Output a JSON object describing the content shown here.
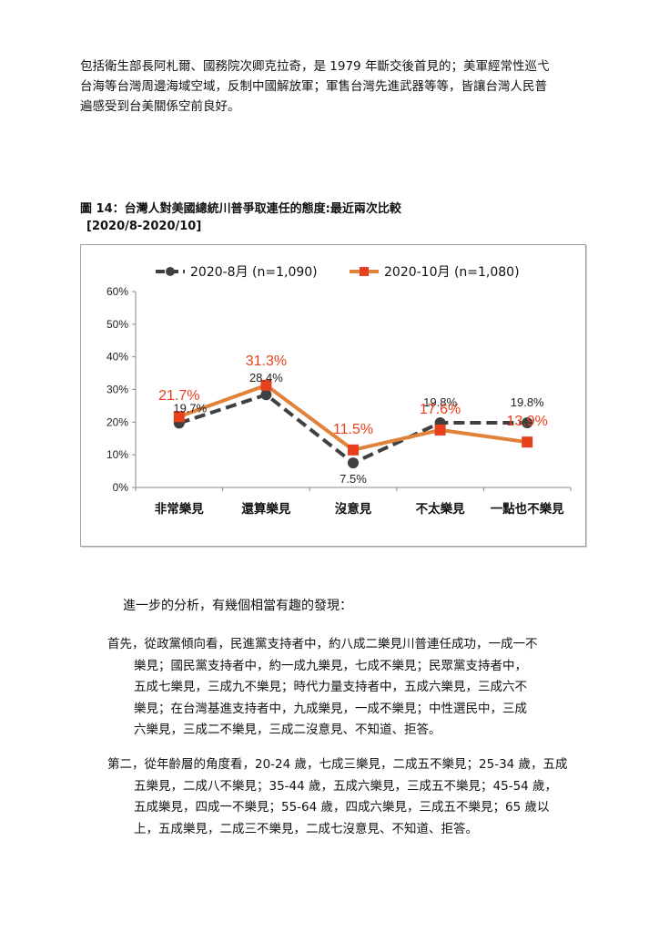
{
  "paragraph_top": {
    "lines": [
      "包括衛生部長阿札爾、國務院次卿克拉奇，是 1979 年斷交後首見的；美軍經常性巡弋",
      "台海等台灣周邊海域空域，反制中國解放軍；軍售台灣先進武器等等，皆讓台灣人民普",
      "遍感受到台美關係空前良好。"
    ]
  },
  "figure": {
    "title": "圖 14：台灣人對美國總統川普爭取連任的態度:最近兩次比較",
    "subtitle": "[2020/8-2020/10]"
  },
  "chart_data": {
    "type": "line",
    "categories": [
      "非常樂見",
      "還算樂見",
      "沒意見",
      "不太樂見",
      "一點也不樂見"
    ],
    "series": [
      {
        "name": "2020-8月 (n=1,090)",
        "values": [
          19.7,
          28.4,
          7.5,
          19.8,
          19.8
        ],
        "labels": [
          "19.7%",
          "28.4%",
          "7.5%",
          "19.8%",
          "19.8%"
        ],
        "color": "#404040",
        "style": "dashed"
      },
      {
        "name": "2020-10月 (n=1,080)",
        "values": [
          21.7,
          31.3,
          11.5,
          17.6,
          13.9
        ],
        "labels": [
          "21.7%",
          "31.3%",
          "11.5%",
          "17.6%",
          "13.9%"
        ],
        "color": "#e0823a",
        "marker_color": "#e8401c",
        "label_color": "#e8401c",
        "style": "solid"
      }
    ],
    "yticks": [
      "0%",
      "10%",
      "20%",
      "30%",
      "40%",
      "50%",
      "60%"
    ],
    "ylim": [
      0,
      60
    ],
    "legend": "top",
    "grid": false
  },
  "intro": "進一步的分析，有幾個相當有趣的發現：",
  "items": [
    {
      "lines": [
        "首先，從政黨傾向看，民進黨支持者中，約八成二樂見川普連任成功，一成一不",
        "樂見；國民黨支持者中，約一成九樂見，七成不樂見；民眾黨支持者中，",
        "五成七樂見，三成九不樂見；時代力量支持者中，五成六樂見，三成六不",
        "樂見；在台灣基進支持者中，九成樂見，一成不樂見；中性選民中，三成",
        "六樂見，三成二不樂見，三成二沒意見、不知道、拒答。"
      ]
    },
    {
      "lines": [
        "第二，從年齡層的角度看，20-24 歲，七成三樂見，二成五不樂見；25-34 歲，五成",
        "五樂見，二成八不樂見；35-44 歲，五成六樂見，三成五不樂見；45-54 歲，",
        "五成樂見，四成一不樂見；55-64 歲，四成六樂見，三成五不樂見；65 歲以",
        "上，五成樂見，二成三不樂見，二成七沒意見、不知道、拒答。"
      ]
    }
  ]
}
